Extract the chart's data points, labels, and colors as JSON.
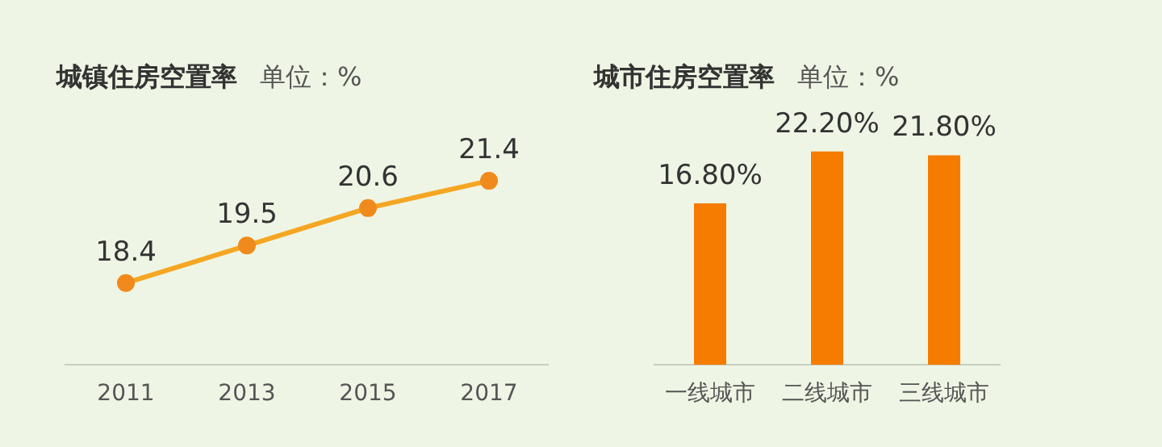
{
  "chart_data": [
    {
      "type": "line",
      "title": "城镇住房空置率",
      "subtitle": "单位：%",
      "categories": [
        "2011",
        "2013",
        "2015",
        "2017"
      ],
      "series": [
        {
          "color": "#f5a623",
          "values": [
            18.4,
            19.5,
            20.6,
            21.4
          ]
        }
      ],
      "marker": "circle",
      "data_labels": true
    },
    {
      "type": "bar",
      "title": "城市住房空置率",
      "subtitle": "单位：%",
      "categories": [
        "一线城市",
        "二线城市",
        "三线城市"
      ],
      "values": [
        16.8,
        22.2,
        21.8
      ],
      "value_labels": [
        "16.80%",
        "22.20%",
        "21.80%"
      ],
      "color": "#f57c00"
    }
  ]
}
